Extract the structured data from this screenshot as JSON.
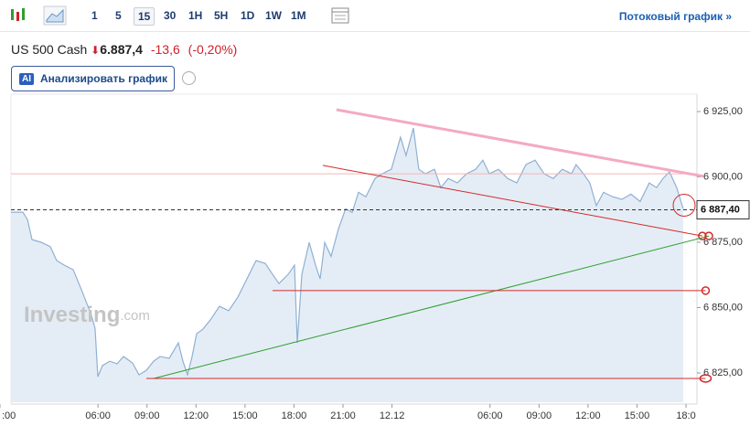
{
  "toolbar": {
    "intervals": [
      "1",
      "5",
      "15",
      "30",
      "1H",
      "5H",
      "1D",
      "1W",
      "1M"
    ],
    "selected": 2,
    "stream_link": "Потоковый график »"
  },
  "quote": {
    "name": "US 500 Cash",
    "price": "6.887,4",
    "change": "-13,6",
    "change_pct": "(-0,20%)"
  },
  "analyze_button": {
    "badge": "AI",
    "label": "Анализировать график"
  },
  "watermark": {
    "brand": "Investing",
    "suffix": ".com"
  },
  "chart_data": {
    "type": "area",
    "color": "#8fb0d3",
    "fill": "#e4edf6",
    "x": [
      0.67,
      1.4,
      1.68,
      1.96,
      2.52,
      3.08,
      3.47,
      3.92,
      4.48,
      5.04,
      5.6,
      5.82,
      5.99,
      6.27,
      6.72,
      7.17,
      7.56,
      8.12,
      8.51,
      8.96,
      9.41,
      9.8,
      10.36,
      10.92,
      11.2,
      11.48,
      11.76,
      12.04,
      12.43,
      12.88,
      13.44,
      14.0,
      14.56,
      15.12,
      15.68,
      16.24,
      16.69,
      17.08,
      17.64,
      18.03,
      18.2,
      18.48,
      18.93,
      19.32,
      19.6,
      19.88,
      20.27,
      20.72,
      21.16,
      21.56,
      21.95,
      22.4,
      22.96,
      23.4,
      23.96,
      24.52,
      24.86,
      25.31,
      25.64,
      26.04,
      26.6,
      26.99,
      27.44,
      28.0,
      28.56,
      29.12,
      29.56,
      29.96,
      30.52,
      31.08,
      31.64,
      32.2,
      32.76,
      33.31,
      33.87,
      34.43,
      34.99,
      35.27,
      35.72,
      36.11,
      36.51,
      36.95,
      37.51,
      38.07,
      38.63,
      39.19,
      39.75,
      40.2,
      40.59,
      40.99,
      41.43,
      41.83
    ],
    "values": [
      6886.5,
      6886.5,
      6883.7,
      6876,
      6875,
      6873.3,
      6868,
      6866.3,
      6864.5,
      6856,
      6847,
      6842,
      6823.6,
      6827.8,
      6829.5,
      6828.5,
      6831.3,
      6828.8,
      6824.3,
      6826,
      6829.5,
      6831.3,
      6830.6,
      6836.5,
      6829.5,
      6824.3,
      6831.3,
      6840,
      6841.8,
      6845.3,
      6850.5,
      6848.8,
      6854,
      6861,
      6868,
      6866.9,
      6862.7,
      6859.2,
      6862.7,
      6866.2,
      6836.5,
      6862.7,
      6874.9,
      6866.2,
      6861,
      6874.9,
      6869.6,
      6880.1,
      6887.8,
      6886.4,
      6894.1,
      6892.4,
      6899.4,
      6901.2,
      6902.9,
      6915.2,
      6908.2,
      6918.7,
      6902.9,
      6901.2,
      6902.9,
      6895.9,
      6899.4,
      6897.7,
      6901.2,
      6902.9,
      6906.4,
      6901.2,
      6902.9,
      6899.4,
      6897.7,
      6904.7,
      6906.4,
      6901.2,
      6899.4,
      6902.9,
      6901.2,
      6904.7,
      6901.2,
      6897.7,
      6889,
      6894.1,
      6892.4,
      6891.4,
      6893.4,
      6890.6,
      6897.7,
      6895.9,
      6899.4,
      6901.9,
      6895.9,
      6887.8
    ],
    "xlim": [
      0,
      42.67
    ],
    "ylim": [
      6813.8,
      6932.7
    ],
    "xticks": [
      {
        "value": 0,
        "label": ":00"
      },
      {
        "value": 6,
        "label": "06:00"
      },
      {
        "value": 9,
        "label": "09:00"
      },
      {
        "value": 12,
        "label": "12:00"
      },
      {
        "value": 15,
        "label": "15:00"
      },
      {
        "value": 18,
        "label": "18:00"
      },
      {
        "value": 21,
        "label": "21:00"
      },
      24,
      {
        "value": 30,
        "label": "06:00"
      },
      {
        "value": 33,
        "label": "09:00"
      },
      {
        "value": 36,
        "label": "12:00"
      },
      {
        "value": 39,
        "label": "15:00"
      },
      {
        "value": 42,
        "label": "18:0"
      }
    ],
    "xtick_24_label": "12.12",
    "yticks": [
      {
        "value": 6825,
        "label": "6 825,00"
      },
      {
        "value": 6850,
        "label": "6 850,00"
      },
      {
        "value": 6875,
        "label": "6 875,00"
      },
      {
        "value": 6900,
        "label": "6 900,00"
      },
      {
        "value": 6925,
        "label": "6 925,00"
      }
    ],
    "price_line": {
      "value": 6887.4,
      "label": "6 887,40"
    },
    "level_line": {
      "value": 6901.2,
      "color": "#f4b6b6"
    },
    "drawings": [
      {
        "color": "#f4a9c4",
        "x": [
          20.6,
          43.1
        ],
        "y": [
          6925.7,
          6900.2
        ]
      },
      {
        "color": "#d42a2a",
        "x": [
          19.76,
          43.0
        ],
        "y": [
          6904.4,
          6877.4
        ]
      },
      {
        "color": "#2e9e2e",
        "x": [
          9.41,
          43.4
        ],
        "y": [
          6822.9,
          6877.4
        ]
      },
      {
        "color": "#d42a2a",
        "x": [
          16.69,
          43.2
        ],
        "y": [
          6856.5,
          6856.5
        ]
      },
      {
        "color": "#d42a2a",
        "x": [
          8.96,
          43.2
        ],
        "y": [
          6822.9,
          6822.9
        ]
      }
    ]
  }
}
